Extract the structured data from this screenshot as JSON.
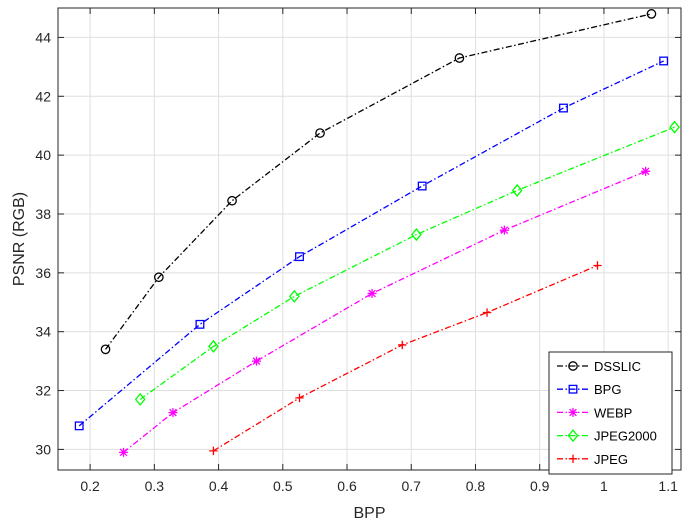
{
  "chart_data": {
    "type": "line",
    "title": "",
    "xlabel": "BPP",
    "ylabel": "PSNR (RGB)",
    "xlim": [
      0.15,
      1.12
    ],
    "ylim": [
      29.3,
      45
    ],
    "xticks": [
      "0.2",
      "0.3",
      "0.4",
      "0.5",
      "0.6",
      "0.7",
      "0.8",
      "0.9",
      "1",
      "1.1"
    ],
    "yticks": [
      "30",
      "32",
      "34",
      "36",
      "38",
      "40",
      "42",
      "44"
    ],
    "grid": true,
    "legend_position": "bottom-right",
    "series": [
      {
        "name": "DSSLIC",
        "color": "#000000",
        "marker": "circle",
        "x": [
          0.224,
          0.307,
          0.421,
          0.558,
          0.775,
          1.074
        ],
        "y": [
          33.4,
          35.85,
          38.45,
          40.75,
          43.3,
          44.8
        ]
      },
      {
        "name": "BPG",
        "color": "#0000ff",
        "marker": "square",
        "x": [
          0.183,
          0.371,
          0.526,
          0.717,
          0.937,
          1.093
        ],
        "y": [
          30.8,
          34.25,
          36.55,
          38.95,
          41.6,
          43.2
        ]
      },
      {
        "name": "WEBP",
        "color": "#ff00ff",
        "marker": "star",
        "x": [
          0.252,
          0.329,
          0.459,
          0.639,
          0.845,
          1.065
        ],
        "y": [
          29.9,
          31.25,
          33.0,
          35.3,
          37.45,
          39.45
        ]
      },
      {
        "name": "JPEG2000",
        "color": "#00ff00",
        "marker": "diamond",
        "x": [
          0.278,
          0.392,
          0.518,
          0.708,
          0.865,
          1.11
        ],
        "y": [
          31.7,
          33.5,
          35.2,
          37.3,
          38.8,
          40.95
        ]
      },
      {
        "name": "JPEG",
        "color": "#ff0000",
        "marker": "plus",
        "x": [
          0.392,
          0.526,
          0.686,
          0.818,
          0.99
        ],
        "y": [
          29.95,
          31.75,
          33.55,
          34.65,
          36.25
        ]
      }
    ]
  }
}
